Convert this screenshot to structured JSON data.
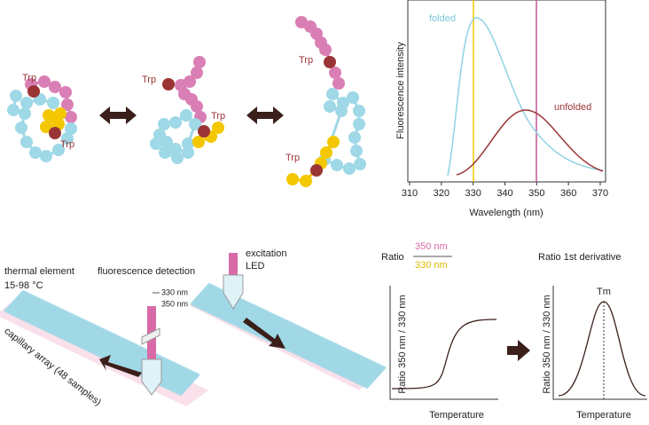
{
  "folding": {
    "states": [
      {
        "trp_labels": [
          "Trp",
          "Trp"
        ]
      },
      {
        "trp_labels": [
          "Trp",
          "Trp"
        ]
      },
      {
        "trp_labels": [
          "Trp",
          "Trp"
        ]
      }
    ]
  },
  "spectrum": {
    "y_label": "Fluorescence intensity",
    "x_label": "Wavelength (nm)",
    "x_ticks": [
      310,
      320,
      330,
      340,
      350,
      360,
      370
    ],
    "curves": [
      "folded",
      "unfolded"
    ]
  },
  "instrument": {
    "thermal_element": "thermal element",
    "temperature_range": "15-98 °C",
    "capillary_array": "capillary array (48 samples)",
    "detection": "fluorescence detection",
    "wavelengths": [
      "330 nm",
      "350 nm"
    ],
    "excitation": [
      "excitation",
      "LED"
    ]
  },
  "analysis": {
    "ratio_label": "Ratio",
    "numerator": "350 nm",
    "denominator": "330 nm",
    "derivative_title": "Ratio 1st derivative",
    "peak": "Tm",
    "plots": [
      {
        "y_label": "Ratio 350 nm / 330 nm",
        "x_label": "Temperature"
      },
      {
        "y_label": "Ratio 350 nm / 330 nm",
        "x_label": "Temperature"
      }
    ]
  }
}
